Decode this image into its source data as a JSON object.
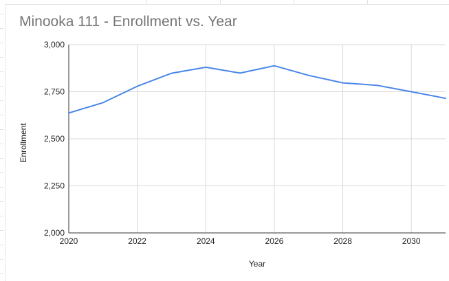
{
  "chart_data": {
    "type": "line",
    "title": "Minooka 111 - Enrollment vs. Year",
    "xlabel": "Year",
    "ylabel": "Enrollment",
    "xlim": [
      2020,
      2031
    ],
    "ylim": [
      2000,
      3000
    ],
    "x_ticks": [
      "2020",
      "2022",
      "2024",
      "2026",
      "2028",
      "2030"
    ],
    "y_ticks": [
      "2,000",
      "2,250",
      "2,500",
      "2,750",
      "3,000"
    ],
    "grid": true,
    "legend": "none",
    "series": [
      {
        "color": "#4a86e8",
        "points": [
          {
            "x": 2020,
            "y": 2637
          },
          {
            "x": 2021,
            "y": 2692
          },
          {
            "x": 2022,
            "y": 2779
          },
          {
            "x": 2023,
            "y": 2848
          },
          {
            "x": 2024,
            "y": 2880
          },
          {
            "x": 2025,
            "y": 2849
          },
          {
            "x": 2026,
            "y": 2888
          },
          {
            "x": 2027,
            "y": 2837
          },
          {
            "x": 2028,
            "y": 2797
          },
          {
            "x": 2029,
            "y": 2784
          },
          {
            "x": 2030,
            "y": 2750
          },
          {
            "x": 2031,
            "y": 2715
          }
        ]
      }
    ]
  }
}
